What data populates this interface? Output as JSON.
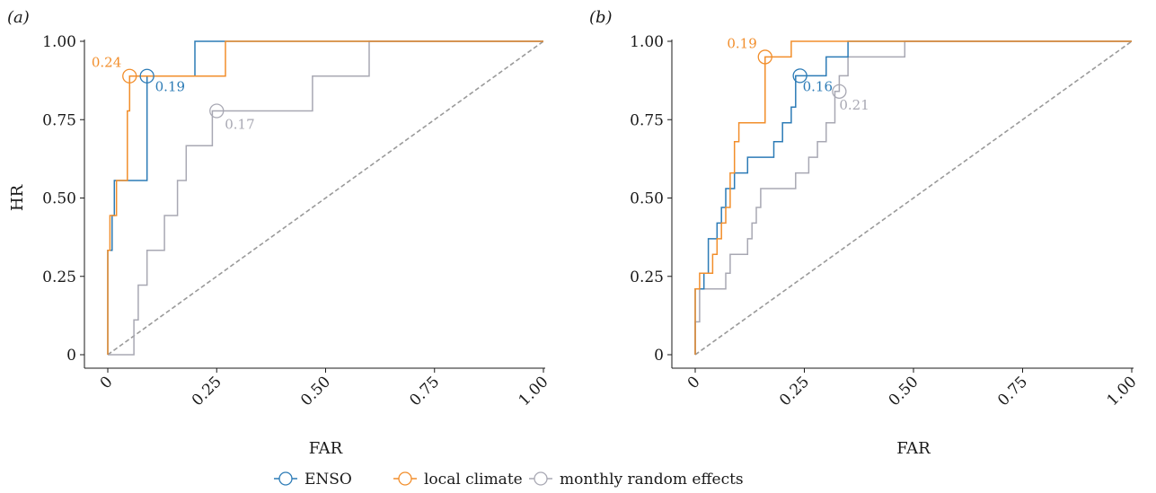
{
  "colors": {
    "ENSO": "#2c7bb6",
    "local climate": "#f28e2b",
    "monthly random effects": "#a8a8b3",
    "diagonal": "#9a9a9a",
    "axis": "#1a1a1a"
  },
  "legend": {
    "entries": [
      "ENSO",
      "local climate",
      "monthly random effects"
    ]
  },
  "chart_data": [
    {
      "type": "line",
      "panel_label": "(a)",
      "xlabel": "FAR",
      "ylabel": "HR",
      "xlim": [
        0,
        1
      ],
      "ylim": [
        0,
        1
      ],
      "x_ticks": [
        0,
        0.25,
        0.5,
        0.75,
        1
      ],
      "x_tick_labels": [
        "0",
        "0.25",
        "0.50",
        "0.75",
        "1.00"
      ],
      "y_ticks": [
        0,
        0.25,
        0.5,
        0.75,
        1
      ],
      "y_tick_labels": [
        "0",
        "0.25",
        "0.50",
        "0.75",
        "1.00"
      ],
      "grid": false,
      "reference_line": [
        [
          0,
          0
        ],
        [
          1,
          1
        ]
      ],
      "series": [
        {
          "name": "ENSO",
          "points": [
            [
              0,
              0
            ],
            [
              0,
              0.333
            ],
            [
              0.01,
              0.333
            ],
            [
              0.01,
              0.444
            ],
            [
              0.015,
              0.444
            ],
            [
              0.015,
              0.556
            ],
            [
              0.09,
              0.556
            ],
            [
              0.09,
              0.889
            ],
            [
              0.2,
              0.889
            ],
            [
              0.2,
              1
            ],
            [
              1,
              1
            ]
          ],
          "marker": [
            0.09,
            0.889
          ],
          "marker_label": "0.19"
        },
        {
          "name": "local climate",
          "points": [
            [
              0,
              0
            ],
            [
              0,
              0.333
            ],
            [
              0.005,
              0.333
            ],
            [
              0.005,
              0.444
            ],
            [
              0.02,
              0.444
            ],
            [
              0.02,
              0.556
            ],
            [
              0.045,
              0.556
            ],
            [
              0.045,
              0.778
            ],
            [
              0.05,
              0.778
            ],
            [
              0.05,
              0.889
            ],
            [
              0.27,
              0.889
            ],
            [
              0.27,
              1
            ],
            [
              1,
              1
            ]
          ],
          "marker": [
            0.05,
            0.889
          ],
          "marker_label": "0.24"
        },
        {
          "name": "monthly random effects",
          "points": [
            [
              0,
              0
            ],
            [
              0.06,
              0
            ],
            [
              0.06,
              0.111
            ],
            [
              0.07,
              0.111
            ],
            [
              0.07,
              0.222
            ],
            [
              0.09,
              0.222
            ],
            [
              0.09,
              0.333
            ],
            [
              0.13,
              0.333
            ],
            [
              0.13,
              0.444
            ],
            [
              0.16,
              0.444
            ],
            [
              0.16,
              0.556
            ],
            [
              0.18,
              0.556
            ],
            [
              0.18,
              0.667
            ],
            [
              0.24,
              0.667
            ],
            [
              0.24,
              0.778
            ],
            [
              0.47,
              0.778
            ],
            [
              0.47,
              0.889
            ],
            [
              0.6,
              0.889
            ],
            [
              0.6,
              1
            ],
            [
              1,
              1
            ]
          ],
          "marker": [
            0.25,
            0.778
          ],
          "marker_label": "0.17"
        }
      ]
    },
    {
      "type": "line",
      "panel_label": "(b)",
      "xlabel": "FAR",
      "ylabel": "",
      "xlim": [
        0,
        1
      ],
      "ylim": [
        0,
        1
      ],
      "x_ticks": [
        0,
        0.25,
        0.5,
        0.75,
        1
      ],
      "x_tick_labels": [
        "0",
        "0.25",
        "0.50",
        "0.75",
        "1.00"
      ],
      "y_ticks": [
        0,
        0.25,
        0.5,
        0.75,
        1
      ],
      "y_tick_labels": [
        "0",
        "0.25",
        "0.50",
        "0.75",
        "1.00"
      ],
      "grid": false,
      "reference_line": [
        [
          0,
          0
        ],
        [
          1,
          1
        ]
      ],
      "series": [
        {
          "name": "ENSO",
          "points": [
            [
              0,
              0
            ],
            [
              0,
              0.21
            ],
            [
              0.02,
              0.21
            ],
            [
              0.02,
              0.26
            ],
            [
              0.03,
              0.26
            ],
            [
              0.03,
              0.37
            ],
            [
              0.05,
              0.37
            ],
            [
              0.05,
              0.42
            ],
            [
              0.06,
              0.42
            ],
            [
              0.06,
              0.47
            ],
            [
              0.07,
              0.47
            ],
            [
              0.07,
              0.53
            ],
            [
              0.09,
              0.53
            ],
            [
              0.09,
              0.58
            ],
            [
              0.12,
              0.58
            ],
            [
              0.12,
              0.63
            ],
            [
              0.18,
              0.63
            ],
            [
              0.18,
              0.68
            ],
            [
              0.2,
              0.68
            ],
            [
              0.2,
              0.74
            ],
            [
              0.22,
              0.74
            ],
            [
              0.22,
              0.79
            ],
            [
              0.23,
              0.79
            ],
            [
              0.23,
              0.89
            ],
            [
              0.3,
              0.89
            ],
            [
              0.3,
              0.95
            ],
            [
              0.35,
              0.95
            ],
            [
              0.35,
              1
            ],
            [
              1,
              1
            ]
          ],
          "marker": [
            0.24,
            0.89
          ],
          "marker_label": "0.16"
        },
        {
          "name": "local climate",
          "points": [
            [
              0,
              0
            ],
            [
              0,
              0.21
            ],
            [
              0.01,
              0.21
            ],
            [
              0.01,
              0.26
            ],
            [
              0.04,
              0.26
            ],
            [
              0.04,
              0.32
            ],
            [
              0.05,
              0.32
            ],
            [
              0.05,
              0.37
            ],
            [
              0.06,
              0.37
            ],
            [
              0.06,
              0.42
            ],
            [
              0.07,
              0.42
            ],
            [
              0.07,
              0.47
            ],
            [
              0.08,
              0.47
            ],
            [
              0.08,
              0.58
            ],
            [
              0.09,
              0.58
            ],
            [
              0.09,
              0.68
            ],
            [
              0.1,
              0.68
            ],
            [
              0.1,
              0.74
            ],
            [
              0.16,
              0.74
            ],
            [
              0.16,
              0.95
            ],
            [
              0.22,
              0.95
            ],
            [
              0.22,
              1
            ],
            [
              1,
              1
            ]
          ],
          "marker": [
            0.16,
            0.95
          ],
          "marker_label": "0.19"
        },
        {
          "name": "monthly random effects",
          "points": [
            [
              0,
              0
            ],
            [
              0,
              0.105
            ],
            [
              0.01,
              0.105
            ],
            [
              0.01,
              0.21
            ],
            [
              0.07,
              0.21
            ],
            [
              0.07,
              0.26
            ],
            [
              0.08,
              0.26
            ],
            [
              0.08,
              0.32
            ],
            [
              0.12,
              0.32
            ],
            [
              0.12,
              0.37
            ],
            [
              0.13,
              0.37
            ],
            [
              0.13,
              0.42
            ],
            [
              0.14,
              0.42
            ],
            [
              0.14,
              0.47
            ],
            [
              0.15,
              0.47
            ],
            [
              0.15,
              0.53
            ],
            [
              0.23,
              0.53
            ],
            [
              0.23,
              0.58
            ],
            [
              0.26,
              0.58
            ],
            [
              0.26,
              0.63
            ],
            [
              0.28,
              0.63
            ],
            [
              0.28,
              0.68
            ],
            [
              0.3,
              0.68
            ],
            [
              0.3,
              0.74
            ],
            [
              0.32,
              0.74
            ],
            [
              0.32,
              0.84
            ],
            [
              0.33,
              0.84
            ],
            [
              0.33,
              0.89
            ],
            [
              0.35,
              0.89
            ],
            [
              0.35,
              0.95
            ],
            [
              0.48,
              0.95
            ],
            [
              0.48,
              1
            ],
            [
              1,
              1
            ]
          ],
          "marker": [
            0.33,
            0.84
          ],
          "marker_label": "0.21"
        }
      ]
    }
  ]
}
